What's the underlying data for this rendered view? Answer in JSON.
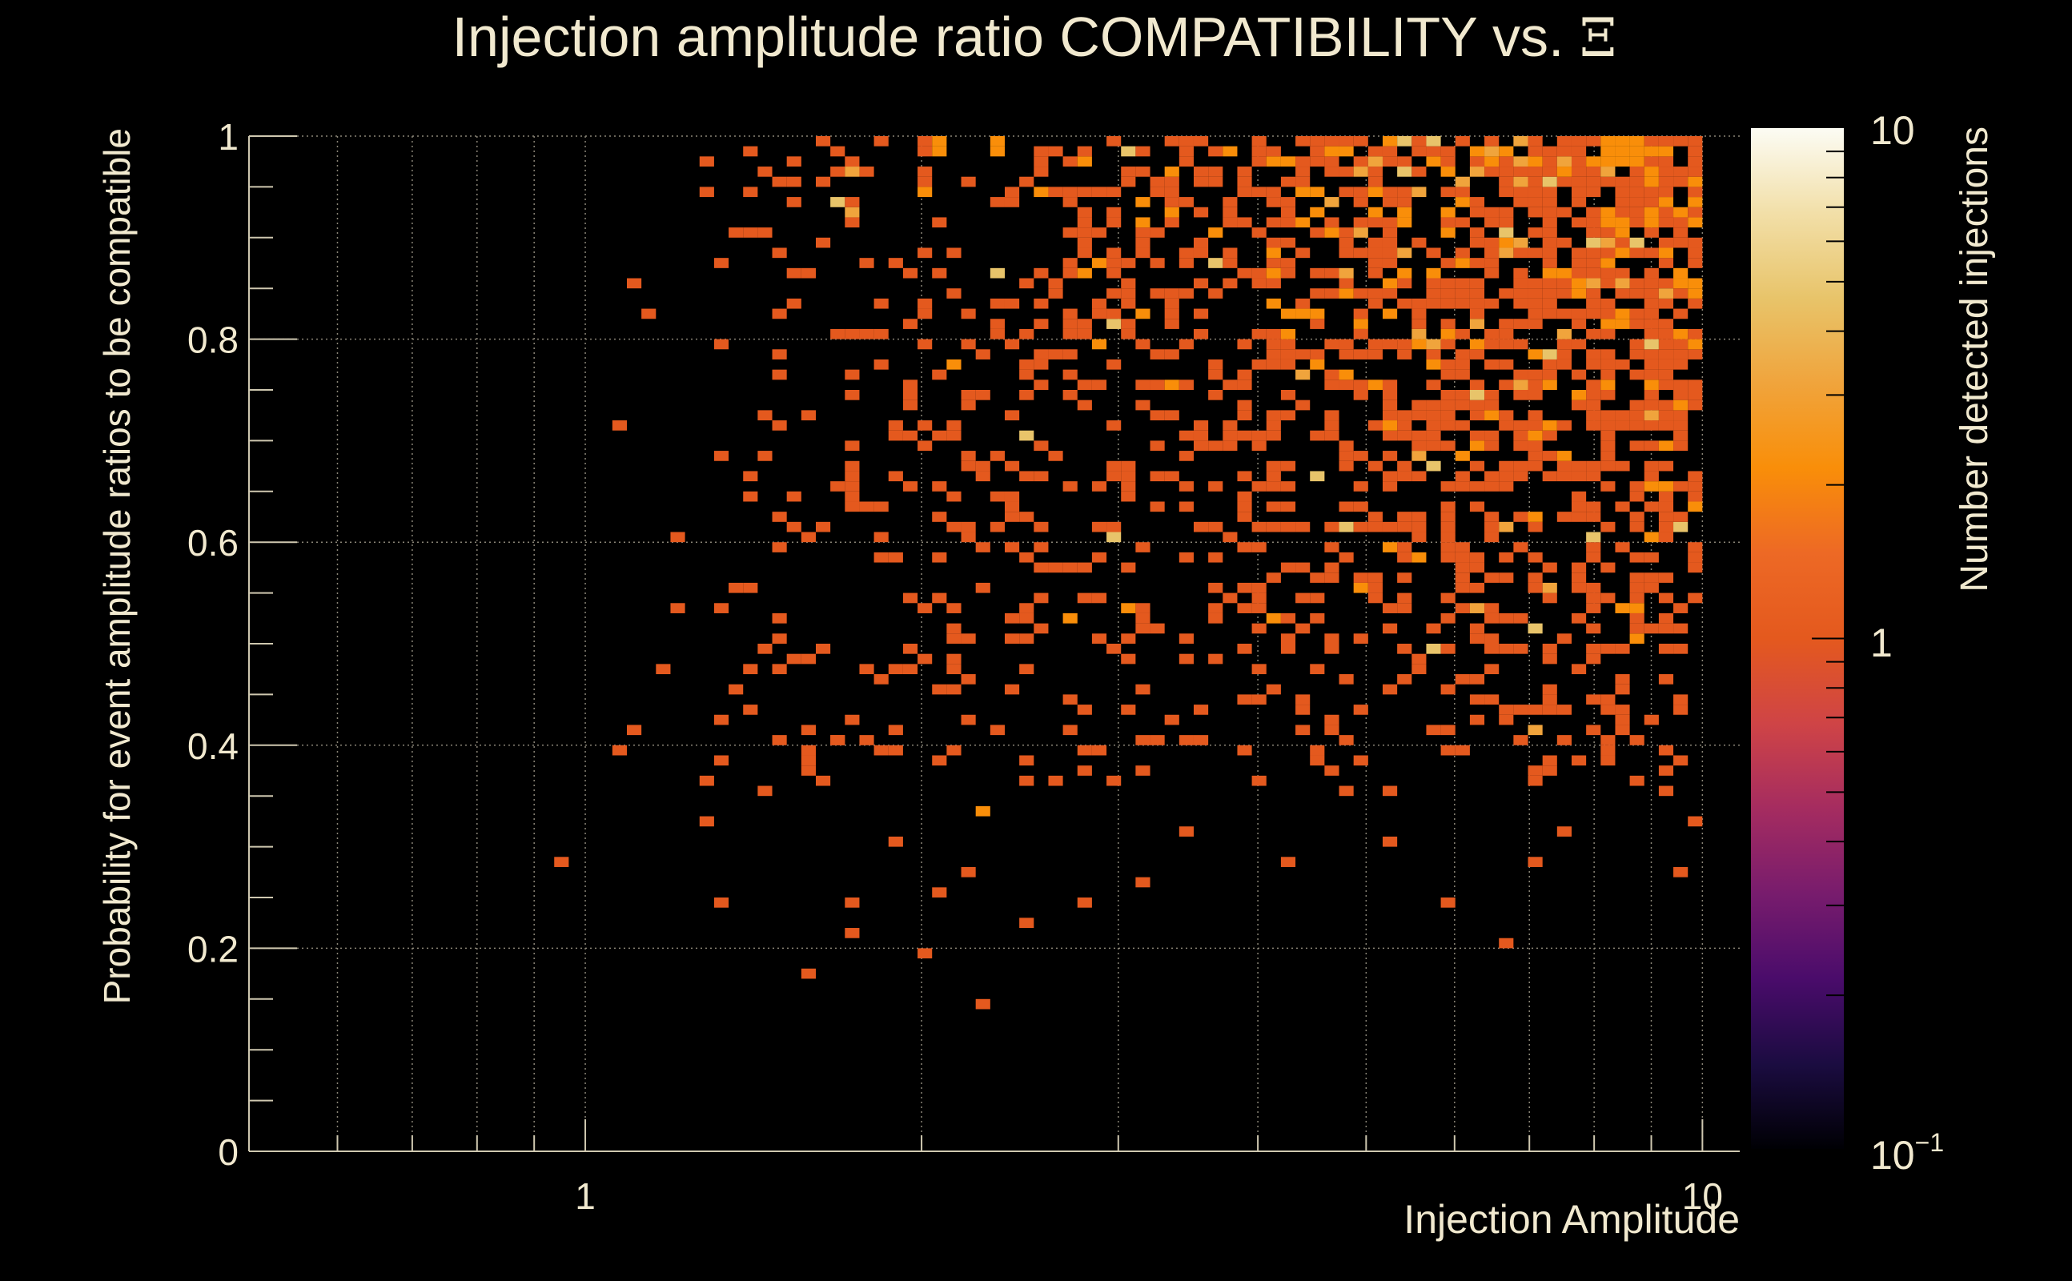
{
  "chart_data": {
    "type": "heatmap",
    "title": "Injection amplitude ratio COMPATIBILITY vs. ",
    "title_symbol": "Ξ",
    "xlabel": "Injection Amplitude",
    "ylabel": "Probability for event amplitude ratios to be compatible",
    "zlabel": "Number detected injections",
    "x_scale": "log",
    "xlim": [
      0.5,
      10.8
    ],
    "ylim": [
      0,
      1
    ],
    "x_tick_labels": [
      "1",
      "10"
    ],
    "y_tick_labels": [
      "0",
      "0.2",
      "0.4",
      "0.6",
      "0.8",
      "1"
    ],
    "z_scale": "log",
    "zlim": [
      0.1,
      10
    ],
    "z_tick_labels": [
      "10",
      "1",
      "10"
    ],
    "z_tick_exponent": "−1",
    "grid": true,
    "colormap": [
      "#000004",
      "#1b0c41",
      "#4a0c6b",
      "#781c6d",
      "#a52c60",
      "#cf4446",
      "#e4591e",
      "#ed6925",
      "#f98e09",
      "#f0a43c",
      "#e8c46a",
      "#f2dfa8",
      "#fcfcf4"
    ],
    "bin_grid": {
      "x_bins": 100,
      "y_bins": 100,
      "x_range": [
        0.5,
        10.0
      ],
      "y_range": [
        0,
        1
      ]
    },
    "bins_sparse": [
      [
        0.95,
        0.28,
        1
      ],
      [
        1.07,
        0.39,
        1
      ],
      [
        1.1,
        0.41,
        1
      ],
      [
        1.07,
        0.71,
        1
      ],
      [
        1.12,
        0.85,
        1
      ],
      [
        1.15,
        0.82,
        1
      ],
      [
        1.18,
        0.47,
        1
      ],
      [
        1.2,
        0.53,
        1
      ],
      [
        1.22,
        0.6,
        1
      ],
      [
        1.27,
        0.36,
        1
      ],
      [
        1.27,
        0.32,
        1
      ],
      [
        1.32,
        0.24,
        1
      ],
      [
        1.32,
        0.38,
        1
      ],
      [
        1.37,
        0.45,
        1
      ],
      [
        1.42,
        0.55,
        1
      ],
      [
        1.47,
        0.35,
        1
      ],
      [
        1.52,
        0.48,
        1
      ],
      [
        1.57,
        0.17,
        1
      ],
      [
        1.62,
        0.36,
        1
      ],
      [
        1.67,
        0.4,
        1
      ],
      [
        1.72,
        0.24,
        1
      ],
      [
        1.75,
        0.21,
        1
      ],
      [
        1.87,
        0.3,
        1
      ],
      [
        2.0,
        0.19,
        1
      ],
      [
        2.07,
        0.25,
        1
      ],
      [
        2.2,
        0.27,
        1
      ],
      [
        2.3,
        0.14,
        1
      ],
      [
        2.5,
        0.22,
        1
      ],
      [
        2.8,
        0.24,
        1
      ],
      [
        3.2,
        0.26,
        1
      ],
      [
        3.5,
        0.31,
        1
      ],
      [
        4.3,
        0.29,
        1
      ],
      [
        5.3,
        0.3,
        1
      ],
      [
        6.0,
        0.24,
        1
      ],
      [
        6.6,
        0.2,
        1
      ],
      [
        7.0,
        0.28,
        1
      ],
      [
        7.5,
        0.31,
        1
      ],
      [
        9.6,
        0.27,
        1
      ],
      [
        9.8,
        0.32,
        1
      ],
      [
        2.3,
        0.33,
        2
      ]
    ],
    "dense_region": {
      "x_range": [
        1.25,
        10.0
      ],
      "y_range": [
        0.35,
        1.0
      ],
      "typical_count": 1,
      "max_count": 4,
      "note_hotspot_near_x": 8.5,
      "note_hotspot_near_y": 0.9
    }
  }
}
